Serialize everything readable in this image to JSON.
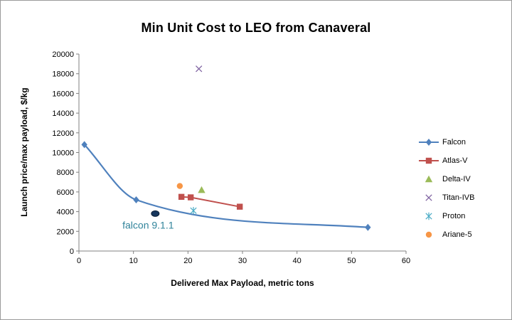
{
  "chart_data": {
    "type": "scatter",
    "title": "Min Unit Cost to LEO from Canaveral",
    "xlabel": "Delivered Max Payload,  metric tons",
    "ylabel": "Launch price/max payload,  $/kg",
    "xlim": [
      0,
      60
    ],
    "ylim": [
      0,
      20000
    ],
    "xticks": [
      0,
      10,
      20,
      30,
      40,
      50,
      60
    ],
    "yticks": [
      0,
      2000,
      4000,
      6000,
      8000,
      10000,
      12000,
      14000,
      16000,
      18000,
      20000
    ],
    "grid": false,
    "legend_position": "right",
    "series": [
      {
        "name": "Falcon",
        "color": "#4F81BD",
        "marker": "diamond",
        "line": "smooth",
        "points": [
          [
            1,
            10800
          ],
          [
            10.5,
            5200
          ],
          [
            53,
            2400
          ]
        ]
      },
      {
        "name": "Atlas-V",
        "color": "#C0504D",
        "marker": "square",
        "line": "straight",
        "points": [
          [
            18.8,
            5500
          ],
          [
            20.5,
            5450
          ],
          [
            29.5,
            4500
          ]
        ]
      },
      {
        "name": "Delta-IV",
        "color": "#9BBB59",
        "marker": "triangle",
        "line": "none",
        "points": [
          [
            22.5,
            6200
          ]
        ]
      },
      {
        "name": "Titan-IVB",
        "color": "#8064A2",
        "marker": "x",
        "line": "none",
        "points": [
          [
            22,
            18500
          ]
        ]
      },
      {
        "name": "Proton",
        "color": "#4BACC6",
        "marker": "asterisk",
        "line": "none",
        "points": [
          [
            21,
            4100
          ]
        ]
      },
      {
        "name": "Ariane-5",
        "color": "#F79646",
        "marker": "circle",
        "line": "none",
        "points": [
          [
            18.5,
            6600
          ]
        ]
      }
    ],
    "annotation": {
      "label": "falcon 9.1.1",
      "x": 14,
      "y": 3800,
      "text_color": "#31849B",
      "marker_color": "#17375E"
    },
    "axis_color": "#808080"
  }
}
